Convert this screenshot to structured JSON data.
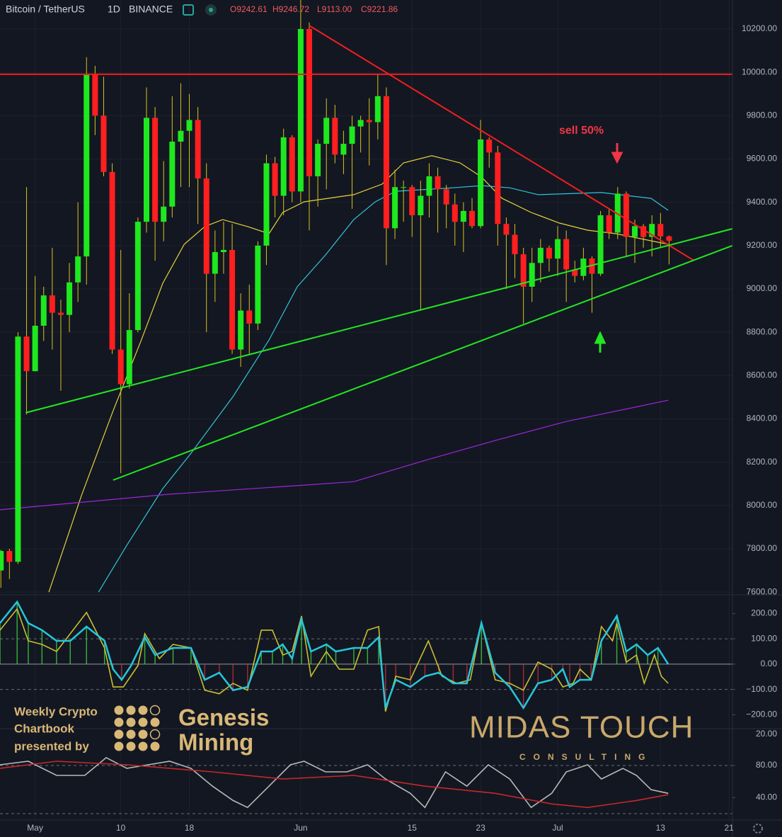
{
  "header": {
    "symbol": "Bitcoin / TetherUS",
    "interval": "1D",
    "exchange": "BINANCE",
    "ohlc": [
      "O9242.61",
      "H9246.72",
      "L9113.00",
      "C9221.86"
    ]
  },
  "watermarks": {
    "sponsor": [
      "Weekly Crypto",
      "Chartbook",
      "presented by"
    ],
    "sponsor_name": [
      "Genesis",
      "Mining"
    ],
    "brand": "MIDAS TOUCH",
    "brand_sub": "CONSULTING"
  },
  "chart_data": [
    {
      "type": "candlestick",
      "annotations": [
        {
          "text": "sell 50%",
          "color": "#f23645"
        }
      ],
      "up_color": "#1ee81e",
      "down_color": "#ff1f1f",
      "wick_color": "#d8c21e",
      "x": [
        -4,
        -3,
        -2,
        -1,
        0,
        1,
        2,
        3,
        4,
        5,
        6,
        7,
        8,
        9,
        10,
        11,
        12,
        13,
        14,
        15,
        16,
        17,
        18,
        19,
        20,
        21,
        22,
        23,
        24,
        25,
        26,
        27,
        28,
        29,
        30,
        31,
        32,
        33,
        34,
        35,
        36,
        37,
        38,
        39,
        40,
        41,
        42,
        43,
        44,
        45,
        46,
        47,
        48,
        49,
        50,
        51,
        52,
        53,
        54,
        55,
        56,
        57,
        58,
        59,
        60,
        61,
        62,
        63,
        64,
        65,
        66,
        67,
        68,
        69,
        70,
        71,
        72,
        73,
        74
      ],
      "open": [
        7700,
        7790,
        7740,
        8780,
        8620,
        8830,
        8970,
        8890,
        8880,
        9030,
        9150,
        9990,
        9800,
        9540,
        8720,
        8560,
        8810,
        9310,
        9790,
        9310,
        9380,
        9680,
        9730,
        9780,
        9510,
        9070,
        9170,
        9180,
        8720,
        8900,
        8840,
        9200,
        9580,
        9430,
        9700,
        9450,
        10200,
        9520,
        9670,
        9790,
        9620,
        9670,
        9750,
        9780,
        9770,
        9890,
        9280,
        9470,
        9470,
        9340,
        9430,
        9520,
        9460,
        9390,
        9310,
        9360,
        9290,
        9690,
        9630,
        9300,
        9250,
        9160,
        9010,
        9120,
        9190,
        9140,
        9230,
        9090,
        9060,
        9140,
        9070,
        9340,
        9260,
        9440,
        9240,
        9290,
        9240,
        9300,
        9242.61
      ],
      "high": [
        7795,
        7800,
        8800,
        9470,
        9060,
        9010,
        9190,
        8950,
        9120,
        9400,
        10070,
        10030,
        9980,
        9580,
        9180,
        8980,
        9330,
        9930,
        9840,
        9590,
        9890,
        9950,
        9900,
        9840,
        9580,
        9270,
        9310,
        9300,
        8980,
        9020,
        9220,
        9620,
        9610,
        9740,
        9710,
        10430,
        10230,
        9690,
        9880,
        9850,
        9730,
        9800,
        9800,
        9880,
        9990,
        9930,
        9550,
        9500,
        9480,
        9500,
        9580,
        9560,
        9480,
        9440,
        9400,
        9420,
        9780,
        9700,
        9660,
        9330,
        9300,
        9190,
        9190,
        9230,
        9200,
        9290,
        9270,
        9130,
        9190,
        9150,
        9360,
        9370,
        9470,
        9450,
        9320,
        9300,
        9340,
        9350,
        9246.72
      ],
      "low": [
        7620,
        7660,
        7730,
        8420,
        8620,
        8760,
        8720,
        8530,
        8800,
        8940,
        9020,
        9710,
        9520,
        8700,
        8150,
        8540,
        8800,
        9260,
        9130,
        9220,
        9330,
        9470,
        9470,
        9300,
        8800,
        8940,
        9070,
        8700,
        8640,
        8700,
        8810,
        9110,
        9330,
        9340,
        9400,
        9400,
        9270,
        9380,
        9460,
        9580,
        9530,
        9370,
        9630,
        9570,
        9690,
        9110,
        9230,
        9310,
        9240,
        8900,
        9330,
        9260,
        9280,
        9200,
        9170,
        9280,
        9280,
        9560,
        9200,
        9000,
        9050,
        8840,
        8940,
        9030,
        9080,
        9060,
        8940,
        9030,
        9040,
        8890,
        9060,
        9230,
        9230,
        9150,
        9120,
        9190,
        9150,
        9190,
        9113
      ],
      "close": [
        7790,
        7740,
        8780,
        8620,
        8830,
        8970,
        8890,
        8880,
        9030,
        9150,
        9990,
        9800,
        9540,
        8720,
        8560,
        8810,
        9310,
        9790,
        9310,
        9380,
        9680,
        9730,
        9780,
        9510,
        9070,
        9170,
        9180,
        8720,
        8900,
        8840,
        9200,
        9580,
        9430,
        9700,
        9450,
        10200,
        9520,
        9670,
        9790,
        9620,
        9670,
        9750,
        9780,
        9770,
        9890,
        9280,
        9470,
        9470,
        9340,
        9430,
        9520,
        9460,
        9390,
        9310,
        9360,
        9290,
        9690,
        9630,
        9300,
        9250,
        9160,
        9010,
        9120,
        9190,
        9140,
        9230,
        9090,
        9060,
        9140,
        9070,
        9340,
        9260,
        9440,
        9240,
        9290,
        9240,
        9300,
        9242.61,
        9221.86
      ],
      "overlays": [
        {
          "color": "#e6d23a",
          "x": [
            1.6,
            5.4,
            9.1,
            12.4,
            14.9,
            17.4,
            19.8,
            21.9,
            24.8,
            27.3,
            28.9,
            31.4,
            37.2,
            40.5,
            43.0,
            46.3,
            49.6,
            52.1,
            54.5,
            57.9,
            61.2,
            64.5,
            67.8,
            73.9
          ],
          "values": [
            7600,
            8045,
            8437,
            8764,
            9026,
            9206,
            9288,
            9320,
            9288,
            9255,
            9353,
            9402,
            9435,
            9484,
            9582,
            9615,
            9582,
            9517,
            9418,
            9353,
            9304,
            9271,
            9255,
            9206
          ]
        },
        {
          "color": "#2fc4d8",
          "x": [
            7.4,
            10.7,
            14.9,
            18.2,
            23.1,
            27.3,
            30.6,
            33.9,
            37.2,
            39.7,
            42.1,
            48.8,
            52.1,
            55.4,
            58.7,
            66.1,
            71.9,
            73.9
          ],
          "values": [
            7600,
            7816,
            8078,
            8241,
            8503,
            8764,
            9010,
            9157,
            9320,
            9402,
            9451,
            9467,
            9477,
            9467,
            9435,
            9445,
            9418,
            9363
          ]
        },
        {
          "color": "#9c27d8",
          "x": [
            -4.1,
            15.7,
            31.4,
            37.2,
            45.5,
            53.7,
            62.0,
            73.9
          ],
          "values": [
            7980,
            8052,
            8094,
            8110,
            8208,
            8300,
            8388,
            8486
          ]
        }
      ],
      "trendlines": [
        {
          "color": "#f01e1e",
          "x": [
            -4.1,
            81.4
          ],
          "values": [
            9991,
            9991
          ]
        },
        {
          "color": "#f01e1e",
          "x": [
            32.0,
            76.9
          ],
          "values": [
            10216,
            9131
          ]
        },
        {
          "color": "#22e622",
          "x": [
            -1.1,
            81.4
          ],
          "values": [
            8428,
            9278
          ]
        },
        {
          "color": "#22e622",
          "x": [
            9.1,
            81.4
          ],
          "values": [
            8117,
            9200
          ]
        }
      ],
      "xlim": [
        -4.1,
        81.4
      ],
      "xticks": [
        {
          "value": 0,
          "label": "May"
        },
        10,
        18,
        {
          "value": 31,
          "label": "Jun"
        },
        {
          "value": 44,
          "label": "15"
        },
        {
          "value": 52,
          "label": "23"
        },
        {
          "value": 61,
          "label": "Jul"
        },
        {
          "value": 73,
          "label": "13"
        },
        {
          "value": 81,
          "label": "21"
        }
      ],
      "ylim": [
        7594,
        10334
      ],
      "yticks": [
        {
          "value": 7600,
          "label": "7600.00"
        },
        {
          "value": 7800,
          "label": "7800.00"
        },
        {
          "value": 8000,
          "label": "8000.00"
        },
        {
          "value": 8200,
          "label": "8200.00"
        },
        {
          "value": 8400,
          "label": "8400.00"
        },
        {
          "value": 8600,
          "label": "8600.00"
        },
        {
          "value": 8800,
          "label": "8800.00"
        },
        {
          "value": 9000,
          "label": "9000.00"
        },
        {
          "value": 9200,
          "label": "9200.00"
        },
        {
          "value": 9400,
          "label": "9400.00"
        },
        {
          "value": 9600,
          "label": "9600.00"
        },
        {
          "value": 9800,
          "label": "9800.00"
        },
        {
          "value": 10000,
          "label": "10000.00"
        },
        {
          "value": 10200,
          "label": "10200.00"
        }
      ],
      "grid": true
    },
    {
      "type": "line",
      "series": [
        {
          "color": "#c8c030",
          "x": [
            -4.1,
            -2.1,
            -0.8,
            0.8,
            2.5,
            4.1,
            6.0,
            8.1,
            9.1,
            10.3,
            12.0,
            12.8,
            14.5,
            16.1,
            18.2,
            19.8,
            21.5,
            23.1,
            24.8,
            26.4,
            27.7,
            28.9,
            30.0,
            31.1,
            32.2,
            34.0,
            35.5,
            37.2,
            38.8,
            40.1,
            40.9,
            42.1,
            43.8,
            45.9,
            47.5,
            49.2,
            50.8,
            52.1,
            53.7,
            55.4,
            57.0,
            58.7,
            60.3,
            61.6,
            62.8,
            63.6,
            64.9,
            66.1,
            67.4,
            67.9,
            69.0,
            70.2,
            71.1,
            72.3,
            73.1,
            73.9
          ],
          "values": [
            134,
            218,
            92,
            78,
            50,
            120,
            204,
            64,
            -90,
            -90,
            -6,
            120,
            22,
            78,
            64,
            -103,
            -117,
            -76,
            -103,
            134,
            134,
            36,
            50,
            190,
            -48,
            50,
            -20,
            -20,
            134,
            148,
            -187,
            -48,
            -62,
            92,
            -48,
            -76,
            -62,
            162,
            -62,
            -76,
            -103,
            8,
            -20,
            -90,
            -76,
            -20,
            -62,
            148,
            92,
            162,
            8,
            36,
            -76,
            36,
            -48,
            -76
          ]
        },
        {
          "color": "#26c6da",
          "histogram": true,
          "x": [
            -4.1,
            -2.1,
            -0.8,
            0.8,
            2.5,
            4.1,
            6.0,
            8.1,
            9.1,
            10.1,
            11.2,
            12.8,
            14.0,
            16.1,
            18.2,
            19.8,
            21.5,
            23.1,
            24.8,
            26.4,
            27.7,
            28.9,
            30.0,
            31.1,
            32.2,
            34.0,
            35.1,
            37.2,
            38.8,
            40.1,
            40.9,
            42.1,
            43.8,
            45.5,
            47.1,
            48.8,
            50.4,
            52.1,
            53.7,
            55.4,
            57.0,
            58.7,
            60.3,
            61.6,
            62.4,
            63.6,
            64.9,
            66.1,
            67.9,
            69.0,
            70.2,
            71.5,
            72.7,
            73.9
          ],
          "values": [
            162,
            246,
            162,
            134,
            92,
            92,
            148,
            92,
            -20,
            -62,
            -6,
            106,
            36,
            64,
            64,
            -62,
            -34,
            -103,
            -90,
            50,
            50,
            78,
            22,
            176,
            50,
            78,
            50,
            64,
            64,
            106,
            -173,
            -62,
            -90,
            -48,
            -34,
            -76,
            -76,
            162,
            -34,
            -90,
            -173,
            -76,
            -62,
            -20,
            -90,
            -62,
            -62,
            92,
            190,
            50,
            78,
            36,
            64,
            0
          ]
        }
      ],
      "reference_lines": [
        {
          "value": 100,
          "dashed": true
        },
        {
          "value": 0,
          "dashed": false
        },
        {
          "value": -100,
          "dashed": true
        }
      ],
      "ylim": [
        -252,
        268
      ],
      "yticks": [
        {
          "value": 200,
          "label": "200.00"
        },
        {
          "value": 100,
          "label": "100.00"
        },
        {
          "value": 0,
          "label": "0.00"
        },
        {
          "value": -100,
          "label": "−100.00"
        },
        {
          "value": -200,
          "label": "−200.00"
        }
      ]
    },
    {
      "type": "line",
      "scale_note": "20.00",
      "series": [
        {
          "color": "#b8b8b8",
          "x": [
            -4.1,
            -0.8,
            2.5,
            5.8,
            8.3,
            10.7,
            13.2,
            15.7,
            18.2,
            20.7,
            23.1,
            24.8,
            27.3,
            29.8,
            31.4,
            33.9,
            36.4,
            38.8,
            40.9,
            43.8,
            45.5,
            47.9,
            50.4,
            52.9,
            55.4,
            57.9,
            60.3,
            62.0,
            64.5,
            66.1,
            68.6,
            70.2,
            71.9,
            73.9
          ],
          "values": [
            80.9,
            85.3,
            67.6,
            67.6,
            89.8,
            76.4,
            80.9,
            85.3,
            76.4,
            54.2,
            36.4,
            27.6,
            54.2,
            80.9,
            85.3,
            72,
            72,
            80.9,
            63.1,
            45.3,
            27.6,
            72,
            54.2,
            80.9,
            63.1,
            27.6,
            45.3,
            72,
            80.9,
            63.1,
            76.4,
            67.6,
            49.8,
            45.3
          ]
        },
        {
          "color": "#c62828",
          "x": [
            -4.1,
            2.5,
            10.7,
            20.7,
            28.9,
            37.2,
            45.5,
            53.7,
            60.3,
            64.5,
            70.2,
            73.9
          ],
          "values": [
            76.4,
            85.3,
            80.9,
            72,
            63.1,
            67.6,
            54.2,
            45.3,
            32,
            27.6,
            36.4,
            43.6
          ]
        }
      ],
      "reference_lines": [
        {
          "value": 80,
          "dashed": true
        },
        {
          "value": 20,
          "dashed": true
        }
      ],
      "ylim": [
        12,
        125
      ],
      "yticks": [
        {
          "value": 80,
          "label": "80.00"
        },
        {
          "value": 40,
          "label": "40.00"
        }
      ]
    }
  ]
}
